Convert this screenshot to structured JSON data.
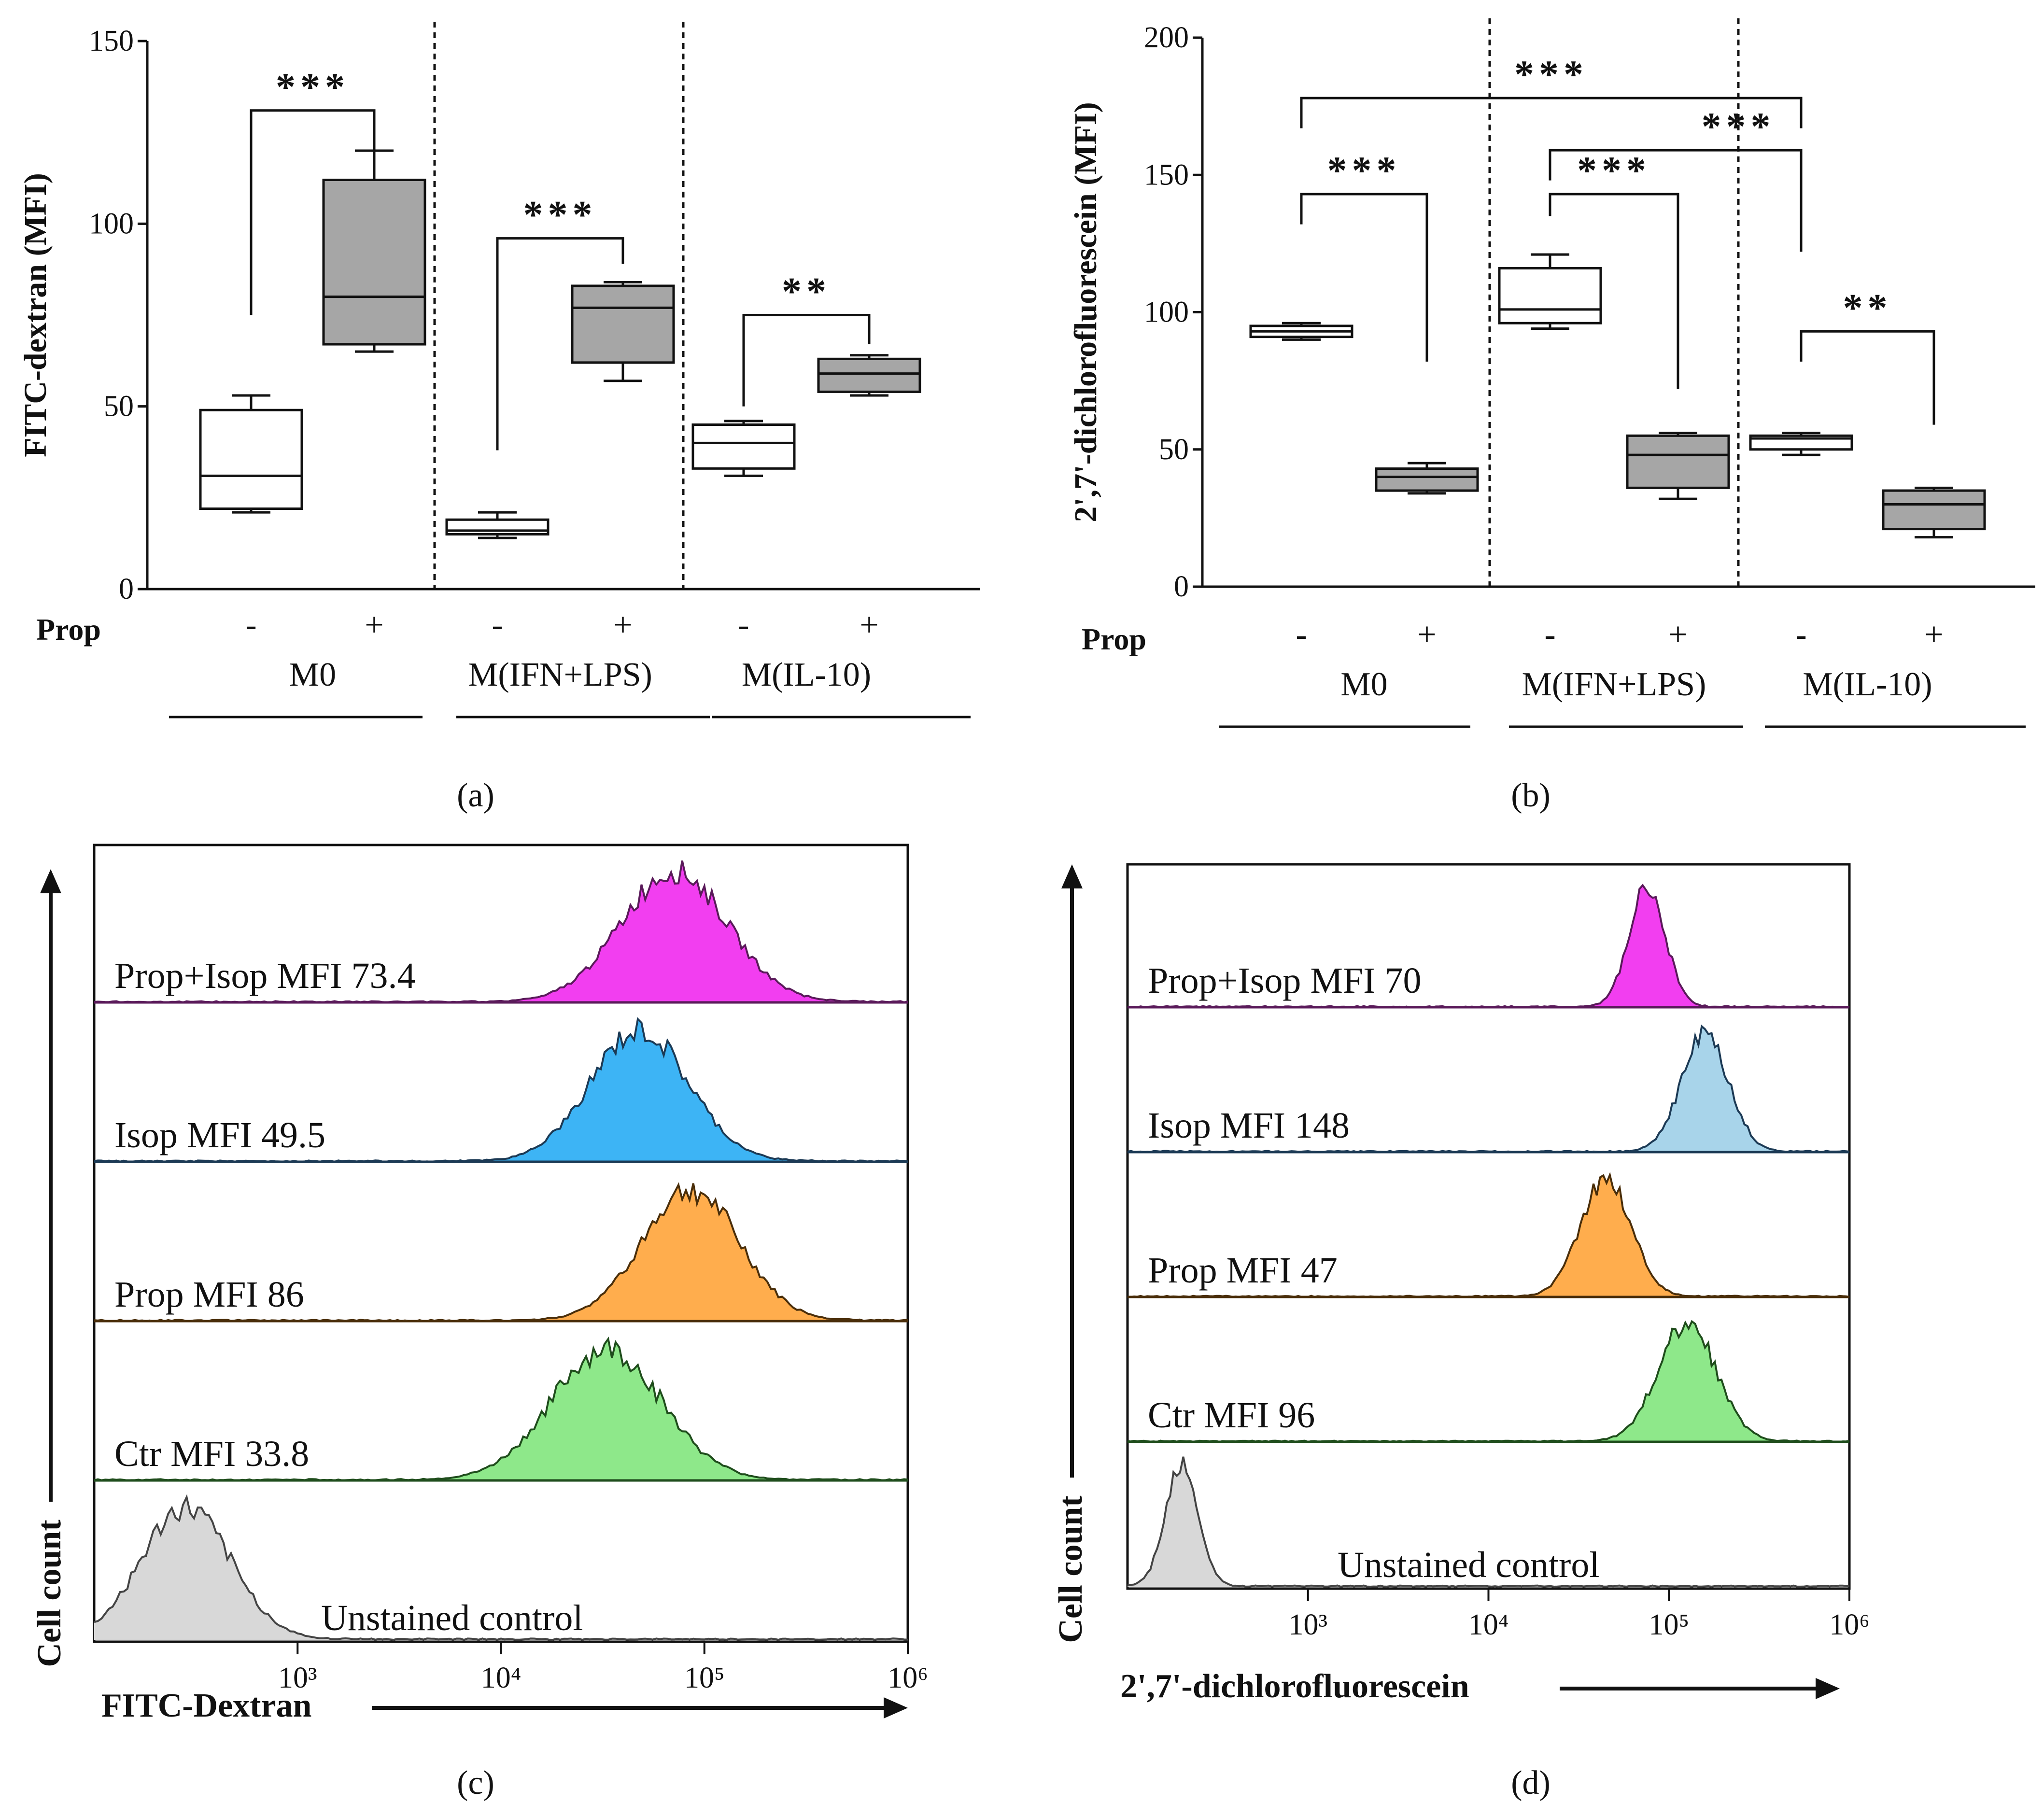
{
  "chart_data": [
    {
      "panel": "a",
      "type": "box",
      "ylabel": "FITC-dextran (MFI)",
      "ylim": [
        0,
        150
      ],
      "yticks": [
        0,
        50,
        100,
        150
      ],
      "prop_label": "Prop",
      "groups": [
        {
          "name": "M0",
          "signs": [
            "-",
            "+"
          ]
        },
        {
          "name": "M(IFN+LPS)",
          "signs": [
            "-",
            "+"
          ]
        },
        {
          "name": "M(IL-10)",
          "signs": [
            "-",
            "+"
          ]
        }
      ],
      "boxes": [
        {
          "group": "M0",
          "prop": "-",
          "min": 21,
          "q1": 22,
          "median": 31,
          "q3": 49,
          "max": 53,
          "fill": "#ffffff"
        },
        {
          "group": "M0",
          "prop": "+",
          "min": 65,
          "q1": 67,
          "median": 80,
          "q3": 112,
          "max": 120,
          "fill": "#a6a6a6"
        },
        {
          "group": "M(IFN+LPS)",
          "prop": "-",
          "min": 14,
          "q1": 15,
          "median": 16,
          "q3": 19,
          "max": 21,
          "fill": "#ffffff"
        },
        {
          "group": "M(IFN+LPS)",
          "prop": "+",
          "min": 57,
          "q1": 62,
          "median": 77,
          "q3": 83,
          "max": 84,
          "fill": "#a6a6a6"
        },
        {
          "group": "M(IL-10)",
          "prop": "-",
          "min": 31,
          "q1": 33,
          "median": 40,
          "q3": 45,
          "max": 46,
          "fill": "#ffffff"
        },
        {
          "group": "M(IL-10)",
          "prop": "+",
          "min": 53,
          "q1": 54,
          "median": 59,
          "q3": 63,
          "max": 64,
          "fill": "#a6a6a6"
        }
      ],
      "significance": [
        {
          "from_box": 0,
          "to_box": 1,
          "label": "***",
          "level": 131,
          "left_end": 75,
          "right_end": 120
        },
        {
          "from_box": 2,
          "to_box": 3,
          "label": "***",
          "level": 96,
          "left_end": 38,
          "right_end": 89
        },
        {
          "from_box": 4,
          "to_box": 5,
          "label": "**",
          "level": 75,
          "left_end": 50,
          "right_end": 67
        }
      ],
      "panel_label": "(a)"
    },
    {
      "panel": "b",
      "type": "box",
      "ylabel": "2',7'-dichlorofluorescein (MFI)",
      "ylim": [
        0,
        200
      ],
      "yticks": [
        0,
        50,
        100,
        150,
        200
      ],
      "prop_label": "Prop",
      "groups": [
        {
          "name": "M0",
          "signs": [
            "-",
            "+"
          ]
        },
        {
          "name": "M(IFN+LPS)",
          "signs": [
            "-",
            "+"
          ]
        },
        {
          "name": "M(IL-10)",
          "signs": [
            "-",
            "+"
          ]
        }
      ],
      "boxes": [
        {
          "group": "M0",
          "prop": "-",
          "min": 90,
          "q1": 91,
          "median": 93,
          "q3": 95,
          "max": 96,
          "fill": "#ffffff"
        },
        {
          "group": "M0",
          "prop": "+",
          "min": 34,
          "q1": 35,
          "median": 40,
          "q3": 43,
          "max": 45,
          "fill": "#a6a6a6"
        },
        {
          "group": "M(IFN+LPS)",
          "prop": "-",
          "min": 94,
          "q1": 96,
          "median": 101,
          "q3": 116,
          "max": 121,
          "fill": "#ffffff"
        },
        {
          "group": "M(IFN+LPS)",
          "prop": "+",
          "min": 32,
          "q1": 36,
          "median": 48,
          "q3": 55,
          "max": 56,
          "fill": "#a6a6a6"
        },
        {
          "group": "M(IL-10)",
          "prop": "-",
          "min": 48,
          "q1": 50,
          "median": 54,
          "q3": 55,
          "max": 56,
          "fill": "#ffffff"
        },
        {
          "group": "M(IL-10)",
          "prop": "+",
          "min": 18,
          "q1": 21,
          "median": 30,
          "q3": 35,
          "max": 36,
          "fill": "#a6a6a6"
        }
      ],
      "significance": [
        {
          "from_box": 0,
          "to_box": 1,
          "label": "***",
          "level": 143,
          "left_end": 132,
          "right_end": 82
        },
        {
          "from_box": 2,
          "to_box": 3,
          "label": "***",
          "level": 143,
          "left_end": 135,
          "right_end": 72
        },
        {
          "from_box": 0,
          "to_box": 4,
          "label": "***",
          "level": 178,
          "left_end": 167,
          "right_end": 167
        },
        {
          "from_box": 2,
          "to_box": 4,
          "label": "***",
          "level": 159,
          "left_end": 148,
          "right_end": 122
        },
        {
          "from_box": 4,
          "to_box": 5,
          "label": "**",
          "level": 93,
          "left_end": 82,
          "right_end": 59
        }
      ],
      "panel_label": "(b)"
    },
    {
      "panel": "c",
      "type": "histogram-overlay",
      "xlabel": "FITC-Dextran",
      "ylabel": "Cell count",
      "xscale": "log",
      "xlim": [
        100,
        1000000
      ],
      "xticks": [
        "10³",
        "10⁴",
        "10⁵",
        "10⁶"
      ],
      "tracks": [
        {
          "label": "Prop+Isop MFI 73.4",
          "color": "#f23ef0",
          "line": "#5a1a5a",
          "peak_log10": 4.85,
          "width": 0.26,
          "skew": 0.1
        },
        {
          "label": "Isop MFI 49.5",
          "color": "#3db4f5",
          "line": "#1c3a55",
          "peak_log10": 4.68,
          "width": 0.24,
          "skew": 0.0
        },
        {
          "label": "Prop MFI 86",
          "color": "#ffad4d",
          "line": "#4a2e0a",
          "peak_log10": 4.93,
          "width": 0.24,
          "skew": 0.0
        },
        {
          "label": "Ctr MFI 33.8",
          "color": "#8ee88a",
          "line": "#1f4d1c",
          "peak_log10": 4.52,
          "width": 0.27,
          "skew": 0.0
        },
        {
          "label": "Unstained control",
          "color": "#d8d8d8",
          "line": "#444444",
          "peak_log10": 2.45,
          "width": 0.22,
          "skew": 0.0
        }
      ],
      "panel_label": "(c)"
    },
    {
      "panel": "d",
      "type": "histogram-overlay",
      "xlabel": "2',7'-dichlorofluorescein",
      "ylabel": "Cell count",
      "xscale": "log",
      "xlim": [
        100,
        1000000
      ],
      "xticks": [
        "10³",
        "10⁴",
        "10⁵",
        "10⁶"
      ],
      "tracks": [
        {
          "label": "Prop+Isop MFI 70",
          "color": "#f23ef0",
          "line": "#5a1a5a",
          "peak_log10": 4.88,
          "width": 0.1,
          "skew": 0.0
        },
        {
          "label": "Isop MFI 148",
          "color": "#a8d4ea",
          "line": "#1c3a55",
          "peak_log10": 5.2,
          "width": 0.13,
          "skew": 0.0
        },
        {
          "label": "Prop MFI 47",
          "color": "#ffad4d",
          "line": "#4a2e0a",
          "peak_log10": 4.65,
          "width": 0.14,
          "skew": 0.0
        },
        {
          "label": "Ctr MFI 96",
          "color": "#8ee88a",
          "line": "#1f4d1c",
          "peak_log10": 5.1,
          "width": 0.16,
          "skew": 0.0
        },
        {
          "label": "Unstained control",
          "color": "#d8d8d8",
          "line": "#444444",
          "peak_log10": 2.3,
          "width": 0.09,
          "skew": 0.0
        }
      ],
      "panel_label": "(d)"
    }
  ]
}
